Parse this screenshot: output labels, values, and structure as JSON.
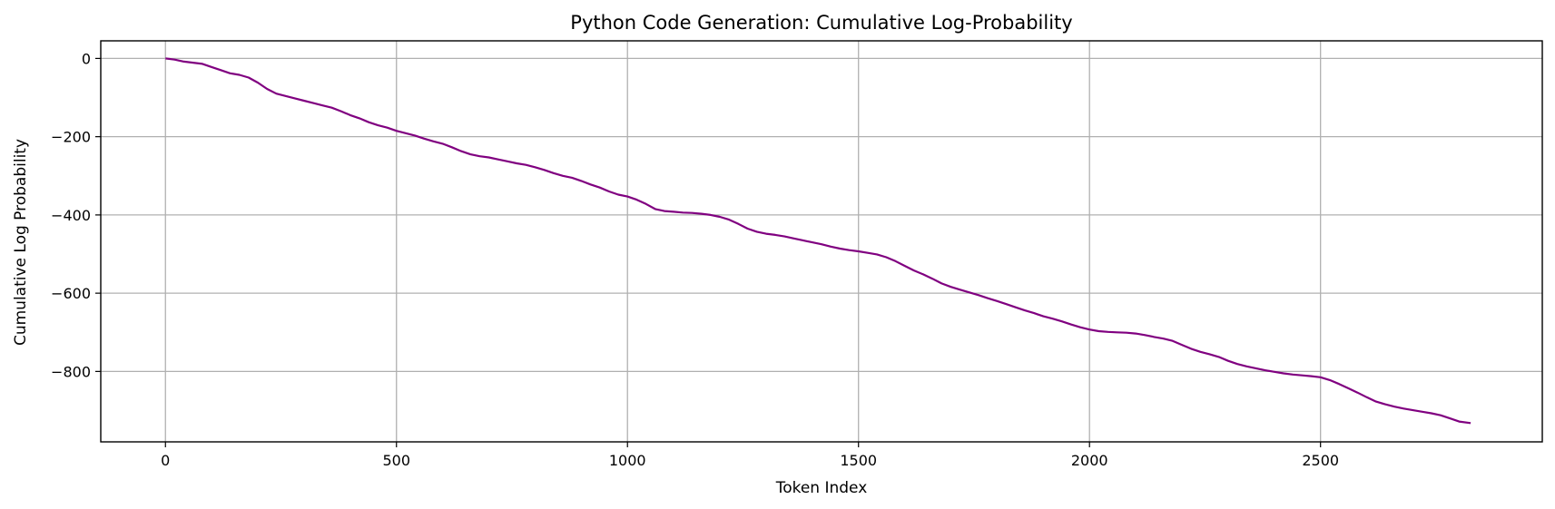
{
  "chart_data": {
    "type": "line",
    "title": "Python Code Generation: Cumulative Log-Probability",
    "xlabel": "Token Index",
    "ylabel": "Cumulative Log Probability",
    "xlim": [
      -140,
      2980
    ],
    "ylim": [
      -980,
      45
    ],
    "xticks": [
      0,
      500,
      1000,
      1500,
      2000,
      2500
    ],
    "yticks": [
      0,
      -200,
      -400,
      -600,
      -800
    ],
    "grid": true,
    "line_color": "#800080",
    "series": [
      {
        "x": [
          0,
          20,
          40,
          60,
          80,
          100,
          120,
          140,
          160,
          180,
          200,
          220,
          240,
          260,
          280,
          300,
          320,
          340,
          360,
          380,
          400,
          420,
          440,
          460,
          480,
          500,
          520,
          540,
          560,
          580,
          600,
          620,
          640,
          660,
          680,
          700,
          720,
          740,
          760,
          780,
          800,
          820,
          840,
          860,
          880,
          900,
          920,
          940,
          960,
          980,
          1000,
          1020,
          1040,
          1060,
          1080,
          1100,
          1120,
          1140,
          1160,
          1180,
          1200,
          1220,
          1240,
          1260,
          1280,
          1300,
          1320,
          1340,
          1360,
          1380,
          1400,
          1420,
          1440,
          1460,
          1480,
          1500,
          1520,
          1540,
          1560,
          1580,
          1600,
          1620,
          1640,
          1660,
          1680,
          1700,
          1720,
          1740,
          1760,
          1780,
          1800,
          1820,
          1840,
          1860,
          1880,
          1900,
          1920,
          1940,
          1960,
          1980,
          2000,
          2020,
          2040,
          2060,
          2080,
          2100,
          2120,
          2140,
          2160,
          2180,
          2200,
          2220,
          2240,
          2260,
          2280,
          2300,
          2320,
          2340,
          2360,
          2380,
          2400,
          2420,
          2440,
          2460,
          2480,
          2500,
          2520,
          2540,
          2560,
          2580,
          2600,
          2620,
          2640,
          2660,
          2680,
          2700,
          2720,
          2740,
          2760,
          2780,
          2800,
          2825
        ],
        "y": [
          0,
          -3,
          -8,
          -11,
          -14,
          -22,
          -30,
          -38,
          -42,
          -49,
          -62,
          -78,
          -90,
          -96,
          -102,
          -108,
          -114,
          -120,
          -126,
          -135,
          -145,
          -153,
          -163,
          -171,
          -177,
          -185,
          -191,
          -197,
          -205,
          -212,
          -218,
          -227,
          -237,
          -245,
          -250,
          -253,
          -258,
          -263,
          -268,
          -272,
          -278,
          -285,
          -293,
          -300,
          -305,
          -313,
          -322,
          -330,
          -340,
          -348,
          -353,
          -361,
          -372,
          -385,
          -390,
          -392,
          -394,
          -395,
          -397,
          -400,
          -405,
          -412,
          -423,
          -435,
          -443,
          -448,
          -451,
          -455,
          -460,
          -465,
          -470,
          -475,
          -481,
          -486,
          -490,
          -493,
          -497,
          -501,
          -508,
          -518,
          -530,
          -542,
          -552,
          -563,
          -575,
          -584,
          -591,
          -598,
          -605,
          -613,
          -620,
          -628,
          -636,
          -644,
          -651,
          -659,
          -665,
          -672,
          -680,
          -687,
          -693,
          -697,
          -699,
          -700,
          -701,
          -703,
          -707,
          -712,
          -716,
          -722,
          -732,
          -742,
          -750,
          -756,
          -763,
          -773,
          -781,
          -787,
          -792,
          -797,
          -801,
          -805,
          -808,
          -810,
          -812,
          -815,
          -822,
          -832,
          -843,
          -854,
          -866,
          -877,
          -884,
          -890,
          -895,
          -899,
          -903,
          -907,
          -912,
          -920,
          -928,
          -932
        ]
      }
    ]
  }
}
